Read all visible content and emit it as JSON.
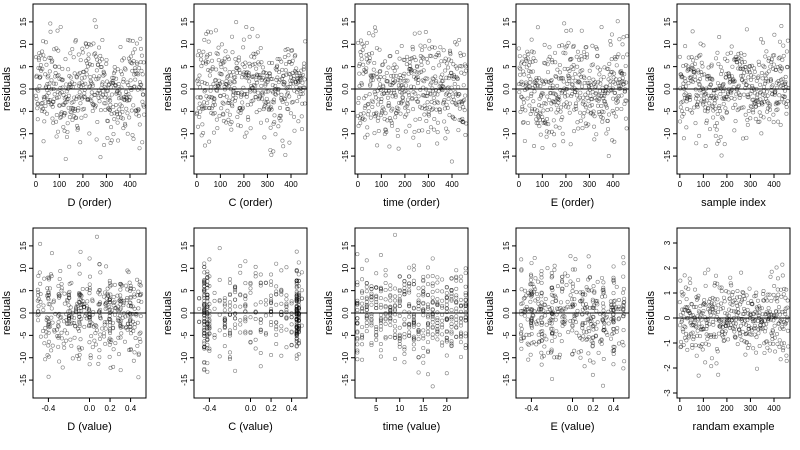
{
  "chart_data": [
    {
      "type": "scatter",
      "xlabel": "D (order)",
      "ylabel": "residuals",
      "xlim": [
        -12,
        468
      ],
      "ylim": [
        -19,
        19
      ],
      "xticks": [
        0,
        100,
        200,
        300,
        400
      ],
      "yticks": [
        -15,
        -10,
        -5,
        0,
        5,
        10,
        15
      ],
      "yticklabels": [
        "-15",
        "-10",
        "-5",
        "0.0",
        "5",
        "10",
        "15"
      ],
      "hline": 0,
      "grid": false,
      "legend": "none",
      "pattern": {
        "n": 450,
        "x_kind": "index",
        "x_max": 460,
        "spread": 7,
        "wave": 0.55,
        "seed": 11
      }
    },
    {
      "type": "scatter",
      "xlabel": "C (order)",
      "ylabel": "residuals",
      "xlim": [
        -12,
        468
      ],
      "ylim": [
        -19,
        19
      ],
      "xticks": [
        0,
        100,
        200,
        300,
        400
      ],
      "yticks": [
        -15,
        -10,
        -5,
        0,
        5,
        10,
        15
      ],
      "yticklabels": [
        "-15",
        "-10",
        "-5",
        "0.0",
        "5",
        "10",
        "15"
      ],
      "hline": 0,
      "grid": false,
      "legend": "none",
      "pattern": {
        "n": 450,
        "x_kind": "index",
        "x_max": 460,
        "spread": 6.5,
        "wave": 0.3,
        "seed": 23
      }
    },
    {
      "type": "scatter",
      "xlabel": "time (order)",
      "ylabel": "residuals",
      "xlim": [
        -12,
        468
      ],
      "ylim": [
        -19,
        19
      ],
      "xticks": [
        0,
        100,
        200,
        300,
        400
      ],
      "yticks": [
        -15,
        -10,
        -5,
        0,
        5,
        10,
        15
      ],
      "yticklabels": [
        "-15",
        "-10",
        "-5",
        "0.0",
        "5",
        "10",
        "15"
      ],
      "hline": 0,
      "grid": false,
      "legend": "none",
      "pattern": {
        "n": 450,
        "x_kind": "index",
        "x_max": 460,
        "spread": 7,
        "wave": 0.2,
        "seed": 37
      }
    },
    {
      "type": "scatter",
      "xlabel": "E (order)",
      "ylabel": "residuals",
      "xlim": [
        -12,
        468
      ],
      "ylim": [
        -19,
        19
      ],
      "xticks": [
        0,
        100,
        200,
        300,
        400
      ],
      "yticks": [
        -15,
        -10,
        -5,
        0,
        5,
        10,
        15
      ],
      "yticklabels": [
        "-15",
        "-10",
        "-5",
        "0.0",
        "5",
        "10",
        "15"
      ],
      "hline": 0,
      "grid": false,
      "legend": "none",
      "pattern": {
        "n": 450,
        "x_kind": "index",
        "x_max": 460,
        "spread": 7,
        "wave": 0.35,
        "seed": 41
      }
    },
    {
      "type": "scatter",
      "xlabel": "sample index",
      "ylabel": "residuals",
      "xlim": [
        -12,
        468
      ],
      "ylim": [
        -19,
        19
      ],
      "xticks": [
        0,
        100,
        200,
        300,
        400
      ],
      "yticks": [
        -15,
        -10,
        -5,
        0,
        5,
        10,
        15
      ],
      "yticklabels": [
        "-15",
        "-10",
        "-5",
        "0.0",
        "5",
        "10",
        "15"
      ],
      "hline": 0,
      "grid": false,
      "legend": "none",
      "pattern": {
        "n": 450,
        "x_kind": "index",
        "x_max": 460,
        "spread": 6.5,
        "wave": 0.5,
        "seed": 53
      }
    },
    {
      "type": "scatter",
      "xlabel": "D (value)",
      "ylabel": "residuals",
      "xlim": [
        -0.55,
        0.55
      ],
      "ylim": [
        -19,
        19
      ],
      "xticks": [
        -0.4,
        0.0,
        0.2,
        0.4
      ],
      "xticklabels": [
        "-0.4",
        "0.0",
        "0.2",
        "0.4"
      ],
      "yticks": [
        -15,
        -10,
        -5,
        0,
        5,
        10,
        15
      ],
      "yticklabels": [
        "-15",
        "-10",
        "-5",
        "0.0",
        "5",
        "10",
        "15"
      ],
      "hline": 0,
      "grid": false,
      "legend": "none",
      "pattern": {
        "n": 450,
        "x_kind": "uniform_clustered",
        "x_min": -0.5,
        "x_max": 0.5,
        "spread": 6.5,
        "wave": 0.2,
        "seed": 61
      }
    },
    {
      "type": "scatter",
      "xlabel": "C (value)",
      "ylabel": "residuals",
      "xlim": [
        -0.55,
        0.55
      ],
      "ylim": [
        -19,
        19
      ],
      "xticks": [
        -0.4,
        0.0,
        0.2,
        0.4
      ],
      "xticklabels": [
        "-0.4",
        "0.0",
        "0.2",
        "0.4"
      ],
      "yticks": [
        -15,
        -10,
        -5,
        0,
        5,
        10,
        15
      ],
      "yticklabels": [
        "-15",
        "-10",
        "-5",
        "0.0",
        "5",
        "10",
        "15"
      ],
      "hline": 0,
      "grid": false,
      "legend": "none",
      "pattern": {
        "n": 450,
        "x_kind": "columns",
        "columns": [
          -0.45,
          -0.42,
          0.45,
          0.47
        ],
        "x_min": -0.5,
        "x_max": 0.5,
        "spread": 6.5,
        "wave": 0.1,
        "seed": 71
      }
    },
    {
      "type": "scatter",
      "xlabel": "time (value)",
      "ylabel": "residuals",
      "xlim": [
        0.5,
        24.5
      ],
      "ylim": [
        -19,
        19
      ],
      "xticks": [
        5,
        10,
        15,
        20
      ],
      "yticks": [
        -15,
        -10,
        -5,
        0,
        5,
        10,
        15
      ],
      "yticklabels": [
        "-15",
        "-10",
        "-5",
        "0.0",
        "5",
        "10",
        "15"
      ],
      "hline": 0,
      "grid": false,
      "legend": "none",
      "pattern": {
        "n": 450,
        "x_kind": "integer",
        "x_min": 1,
        "x_max": 24,
        "spread": 6.5,
        "wave": 0.1,
        "seed": 83
      }
    },
    {
      "type": "scatter",
      "xlabel": "E (value)",
      "ylabel": "residuals",
      "xlim": [
        -0.55,
        0.55
      ],
      "ylim": [
        -19,
        19
      ],
      "xticks": [
        -0.4,
        0.0,
        0.2,
        0.4
      ],
      "xticklabels": [
        "-0.4",
        "0.0",
        "0.2",
        "0.4"
      ],
      "yticks": [
        -15,
        -10,
        -5,
        0,
        5,
        10,
        15
      ],
      "yticklabels": [
        "-15",
        "-10",
        "-5",
        "0.0",
        "5",
        "10",
        "15"
      ],
      "hline": 0,
      "grid": false,
      "legend": "none",
      "pattern": {
        "n": 450,
        "x_kind": "uniform_clustered",
        "x_min": -0.5,
        "x_max": 0.5,
        "spread": 7,
        "wave": 0.15,
        "seed": 97
      }
    },
    {
      "type": "scatter",
      "xlabel": "randam example",
      "ylabel": "residuals",
      "xlim": [
        -12,
        468
      ],
      "ylim": [
        -3.2,
        3.6
      ],
      "xticks": [
        0,
        100,
        200,
        300,
        400
      ],
      "yticks": [
        -3,
        -2,
        -1,
        0,
        1,
        2,
        3
      ],
      "yticklabels": [
        "-3",
        "-2",
        "-1",
        "0",
        "1",
        "2",
        "3"
      ],
      "hline": 0,
      "grid": false,
      "legend": "none",
      "pattern": {
        "n": 450,
        "x_kind": "index",
        "x_max": 460,
        "spread": 1.0,
        "wave": 0.0,
        "seed": 109
      }
    }
  ]
}
